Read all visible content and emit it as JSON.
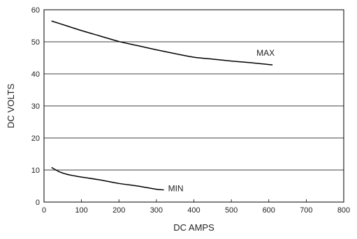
{
  "chart_data": {
    "type": "line",
    "title": "",
    "xlabel": "DC AMPS",
    "ylabel": "DC VOLTS",
    "xlim": [
      0,
      800
    ],
    "ylim": [
      0,
      60
    ],
    "xticks": [
      0,
      100,
      200,
      300,
      400,
      500,
      600,
      700,
      800
    ],
    "yticks": [
      0,
      10,
      20,
      30,
      40,
      50,
      60
    ],
    "grid": "horizontal",
    "legend": "none",
    "series": [
      {
        "name": "MAX",
        "x": [
          20,
          60,
          100,
          150,
          200,
          250,
          300,
          350,
          400,
          450,
          500,
          550,
          610
        ],
        "y": [
          56.5,
          55.0,
          53.5,
          51.8,
          50.1,
          48.8,
          47.5,
          46.3,
          45.2,
          44.6,
          44.0,
          43.5,
          42.8
        ]
      },
      {
        "name": "MIN",
        "x": [
          20,
          40,
          60,
          80,
          100,
          150,
          200,
          250,
          300,
          320
        ],
        "y": [
          10.8,
          9.5,
          8.7,
          8.2,
          7.8,
          6.9,
          5.8,
          5.0,
          4.0,
          3.8
        ]
      }
    ]
  }
}
